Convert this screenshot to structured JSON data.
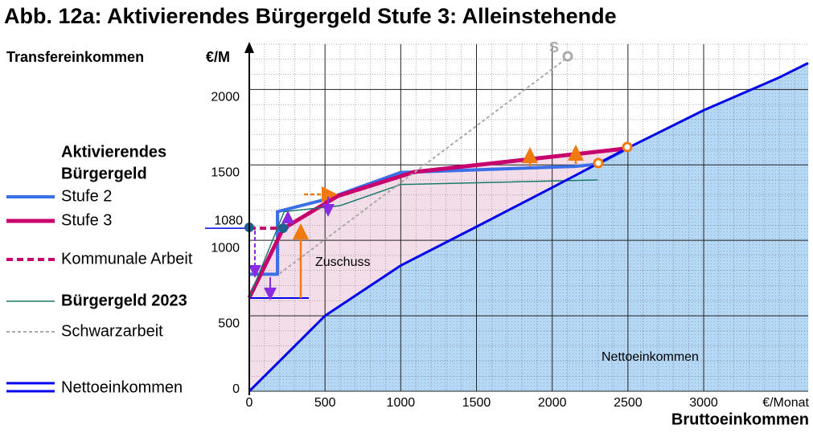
{
  "chart_data": {
    "type": "line",
    "title": "Abb. 12a:  Aktivierendes Bürgergeld Stufe 3:  Alleinstehende",
    "y_label": "Transfereinkommen",
    "y_unit": "€/M",
    "x_label": "Bruttoeinkommen",
    "x_unit": "€/Monat",
    "legend_heading": [
      "Aktivierendes",
      "Bürgergeld"
    ],
    "annotations": [
      "Zuschuss",
      "Nettoeinkommen",
      "S"
    ],
    "xlim": [
      0,
      3690
    ],
    "ylim": [
      0,
      2300
    ],
    "xticks": [
      0,
      500,
      1000,
      1500,
      2000,
      2500,
      3000
    ],
    "yticks": [
      0,
      500,
      1000,
      1080,
      1500,
      2000
    ],
    "grid": true,
    "series": [
      {
        "name": "Stufe 2",
        "color": "#3a6fe8",
        "linewidth": 4,
        "dash": "solid",
        "x": [
          0,
          186,
          186,
          500,
          1000,
          2150,
          2300,
          2500
        ],
        "values": [
          775,
          775,
          1190,
          1270,
          1450,
          1490,
          1505,
          1610
        ]
      },
      {
        "name": "Stufe 3",
        "color": "#c8006e",
        "linewidth": 5,
        "dash": "solid",
        "x": [
          0,
          223,
          584,
          1088,
          2500
        ],
        "values": [
          620,
          1077,
          1294,
          1453,
          1610
        ]
      },
      {
        "name": "Kommunale Arbeit",
        "color": "#c8006e",
        "linewidth": 4,
        "dash": "dashed",
        "x": [
          0,
          223
        ],
        "values": [
          1080,
          1080
        ]
      },
      {
        "name": "Bürgergeld 2023",
        "color": "#1a7a6a",
        "linewidth": 1.5,
        "dash": "solid",
        "x": [
          0,
          230,
          600,
          1000,
          2300
        ],
        "values": [
          620,
          1190,
          1230,
          1370,
          1400
        ]
      },
      {
        "name": "Schwarzarbeit",
        "color": "#aaaaaa",
        "linewidth": 2,
        "dash": "dotted",
        "x": [
          200,
          2100
        ],
        "values": [
          780,
          2210
        ]
      },
      {
        "name": "Nettoeinkommen",
        "color": "#0000ee",
        "linewidth": 3,
        "dash": "solid",
        "x": [
          0,
          500,
          1000,
          1500,
          2000,
          2500,
          3000,
          3500,
          3690
        ],
        "values": [
          0,
          500,
          833,
          1090,
          1350,
          1613,
          1862,
          2080,
          2175
        ]
      }
    ]
  }
}
